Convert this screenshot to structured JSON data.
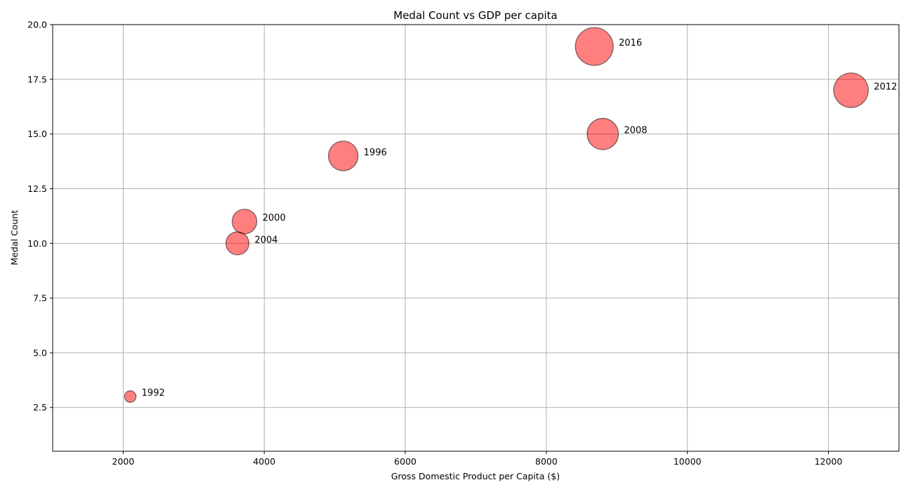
{
  "chart_data": {
    "type": "scatter",
    "title": "Medal Count vs GDP per capita",
    "xlabel": "Gross Domestic Product per Capita ($)",
    "ylabel": "Medal Count",
    "xlim": [
      1000,
      13000
    ],
    "ylim": [
      0.5,
      20
    ],
    "xticks": [
      2000,
      4000,
      6000,
      8000,
      10000,
      12000
    ],
    "yticks": [
      2.5,
      5.0,
      7.5,
      10.0,
      12.5,
      15.0,
      17.5,
      20.0
    ],
    "grid": true,
    "marker_color": "#ff0000",
    "marker_alpha": 0.5,
    "edge_color": "#000000",
    "points": [
      {
        "x": 2100,
        "y": 3,
        "label": "1992",
        "size": 3
      },
      {
        "x": 5120,
        "y": 14,
        "label": "1996",
        "size": 14
      },
      {
        "x": 3720,
        "y": 11,
        "label": "2000",
        "size": 11
      },
      {
        "x": 3620,
        "y": 10,
        "label": "2004",
        "size": 10
      },
      {
        "x": 8800,
        "y": 15,
        "label": "2008",
        "size": 15
      },
      {
        "x": 12320,
        "y": 17,
        "label": "2012",
        "size": 17
      },
      {
        "x": 8680,
        "y": 19,
        "label": "2016",
        "size": 19
      }
    ]
  }
}
